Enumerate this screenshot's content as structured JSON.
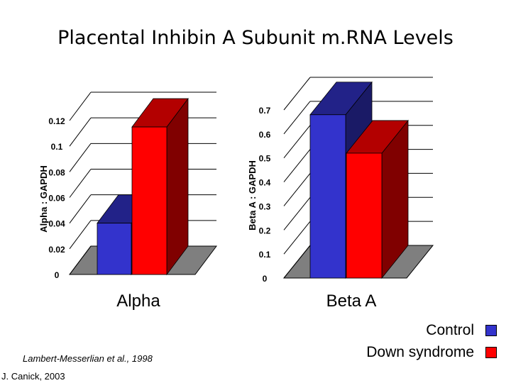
{
  "title": "Placental Inhibin A Subunit m.RNA Levels",
  "citation": "Lambert-Messerlian et al., 1998",
  "credit": "J. Canick, 2003",
  "legend": [
    {
      "label": "Control",
      "color": "#3333cc"
    },
    {
      "label": "Down syndrome",
      "color": "#ff0000"
    }
  ],
  "chart_data": [
    {
      "type": "bar",
      "category": "Alpha",
      "ylabel": "Alpha : GAPDH",
      "ylim": [
        0,
        0.12
      ],
      "ticks": [
        "0",
        "0.02",
        "0.04",
        "0.06",
        "0.08",
        "0.1",
        "0.12"
      ],
      "series": [
        {
          "name": "Control",
          "values": [
            0.04
          ]
        },
        {
          "name": "Down syndrome",
          "values": [
            0.115
          ]
        }
      ]
    },
    {
      "type": "bar",
      "category": "Beta A",
      "ylabel": "Beta A : GAPDH",
      "ylim": [
        0,
        0.7
      ],
      "ticks": [
        "0",
        "0.1",
        "0.2",
        "0.3",
        "0.4",
        "0.5",
        "0.6",
        "0.7"
      ],
      "series": [
        {
          "name": "Control",
          "values": [
            0.68
          ]
        },
        {
          "name": "Down syndrome",
          "values": [
            0.52
          ]
        }
      ]
    }
  ]
}
